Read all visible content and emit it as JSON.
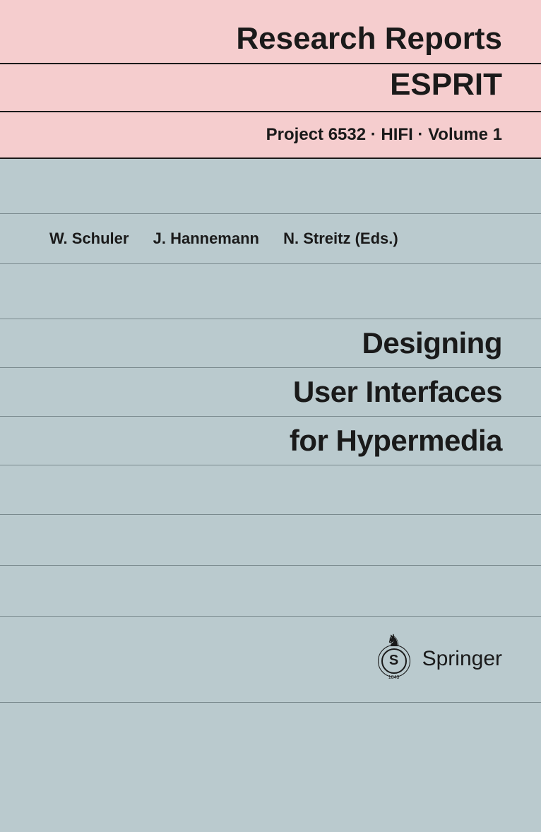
{
  "series": {
    "line1": "Research Reports",
    "line2": "ESPRIT"
  },
  "project_info": "Project 6532 · HIFI · Volume 1",
  "editors": [
    "W. Schuler",
    "J. Hannemann",
    "N. Streitz (Eds.)"
  ],
  "title": {
    "line1": "Designing",
    "line2": "User Interfaces",
    "line3": "for Hypermedia"
  },
  "publisher": {
    "name": "Springer",
    "logo_letter": "S",
    "logo_year": "1843",
    "logo_horse": "♞"
  },
  "colors": {
    "header_bg": "#f5cdce",
    "body_bg": "#bacace",
    "rule_dark": "#1a1a1a",
    "rule_light": "#7a8a8e",
    "text": "#1a1a1a"
  },
  "typography": {
    "series_fontsize": 44,
    "project_fontsize": 24,
    "editors_fontsize": 22,
    "title_fontsize": 42,
    "publisher_fontsize": 30
  }
}
